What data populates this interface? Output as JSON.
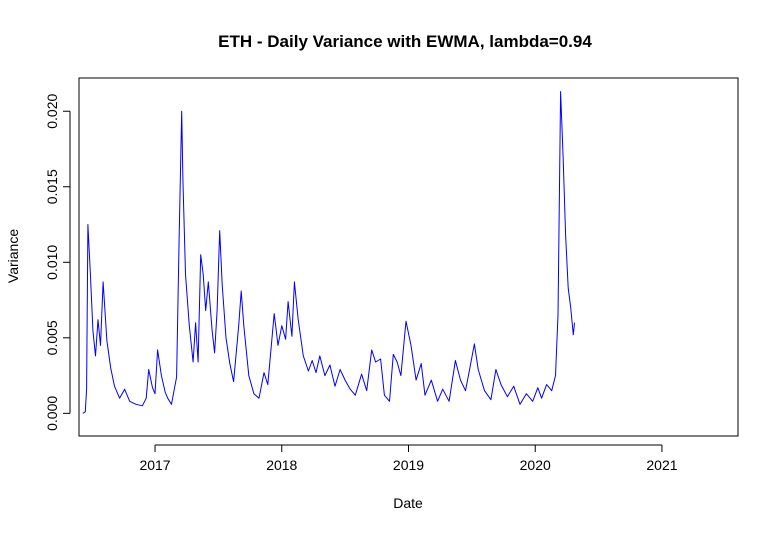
{
  "chart_data": {
    "type": "line",
    "title": "ETH - Daily Variance with EWMA, lambda=0.94",
    "xlabel": "Date",
    "ylabel": "Variance",
    "xlim": [
      2016.4,
      2021.6
    ],
    "ylim": [
      -0.0015,
      0.0222
    ],
    "x_ticks": [
      {
        "value": 2017,
        "label": "2017"
      },
      {
        "value": 2018,
        "label": "2018"
      },
      {
        "value": 2019,
        "label": "2019"
      },
      {
        "value": 2020,
        "label": "2020"
      },
      {
        "value": 2021,
        "label": "2021"
      }
    ],
    "y_ticks": [
      {
        "value": 0.0,
        "label": "0.000"
      },
      {
        "value": 0.005,
        "label": "0.005"
      },
      {
        "value": 0.01,
        "label": "0.010"
      },
      {
        "value": 0.015,
        "label": "0.015"
      },
      {
        "value": 0.02,
        "label": "0.020"
      }
    ],
    "grid": false,
    "series": [
      {
        "color": "#0000ff",
        "points": [
          [
            2016.43,
            0.0
          ],
          [
            2016.45,
            0.0001
          ],
          [
            2016.46,
            0.0016
          ],
          [
            2016.47,
            0.0125
          ],
          [
            2016.49,
            0.0092
          ],
          [
            2016.51,
            0.0055
          ],
          [
            2016.53,
            0.0038
          ],
          [
            2016.55,
            0.0062
          ],
          [
            2016.57,
            0.0045
          ],
          [
            2016.59,
            0.0087
          ],
          [
            2016.62,
            0.0048
          ],
          [
            2016.65,
            0.003
          ],
          [
            2016.68,
            0.0018
          ],
          [
            2016.72,
            0.001
          ],
          [
            2016.76,
            0.0016
          ],
          [
            2016.8,
            0.0008
          ],
          [
            2016.85,
            0.0006
          ],
          [
            2016.9,
            0.0005
          ],
          [
            2016.93,
            0.001
          ],
          [
            2016.95,
            0.0029
          ],
          [
            2016.98,
            0.0017
          ],
          [
            2017.0,
            0.0013
          ],
          [
            2017.02,
            0.0042
          ],
          [
            2017.05,
            0.0025
          ],
          [
            2017.08,
            0.0014
          ],
          [
            2017.1,
            0.001
          ],
          [
            2017.13,
            0.0006
          ],
          [
            2017.15,
            0.0015
          ],
          [
            2017.17,
            0.0024
          ],
          [
            2017.19,
            0.0115
          ],
          [
            2017.21,
            0.02
          ],
          [
            2017.22,
            0.0155
          ],
          [
            2017.24,
            0.0092
          ],
          [
            2017.27,
            0.0058
          ],
          [
            2017.3,
            0.0034
          ],
          [
            2017.32,
            0.006
          ],
          [
            2017.34,
            0.0034
          ],
          [
            2017.36,
            0.0105
          ],
          [
            2017.38,
            0.0092
          ],
          [
            2017.4,
            0.0068
          ],
          [
            2017.42,
            0.0087
          ],
          [
            2017.45,
            0.0055
          ],
          [
            2017.47,
            0.004
          ],
          [
            2017.49,
            0.0068
          ],
          [
            2017.51,
            0.0121
          ],
          [
            2017.53,
            0.0085
          ],
          [
            2017.56,
            0.005
          ],
          [
            2017.59,
            0.0033
          ],
          [
            2017.62,
            0.0021
          ],
          [
            2017.66,
            0.0058
          ],
          [
            2017.68,
            0.0081
          ],
          [
            2017.7,
            0.0058
          ],
          [
            2017.74,
            0.0025
          ],
          [
            2017.78,
            0.0013
          ],
          [
            2017.82,
            0.001
          ],
          [
            2017.86,
            0.0027
          ],
          [
            2017.89,
            0.0019
          ],
          [
            2017.94,
            0.0066
          ],
          [
            2017.97,
            0.0045
          ],
          [
            2018.0,
            0.0058
          ],
          [
            2018.03,
            0.0049
          ],
          [
            2018.05,
            0.0074
          ],
          [
            2018.08,
            0.0051
          ],
          [
            2018.1,
            0.0087
          ],
          [
            2018.13,
            0.0062
          ],
          [
            2018.17,
            0.0038
          ],
          [
            2018.21,
            0.0028
          ],
          [
            2018.24,
            0.0035
          ],
          [
            2018.27,
            0.0027
          ],
          [
            2018.3,
            0.0038
          ],
          [
            2018.34,
            0.0025
          ],
          [
            2018.38,
            0.0032
          ],
          [
            2018.42,
            0.0018
          ],
          [
            2018.46,
            0.0029
          ],
          [
            2018.5,
            0.0022
          ],
          [
            2018.54,
            0.0016
          ],
          [
            2018.58,
            0.0012
          ],
          [
            2018.63,
            0.0026
          ],
          [
            2018.67,
            0.0015
          ],
          [
            2018.71,
            0.0042
          ],
          [
            2018.74,
            0.0034
          ],
          [
            2018.78,
            0.0036
          ],
          [
            2018.81,
            0.0012
          ],
          [
            2018.85,
            0.0008
          ],
          [
            2018.88,
            0.0039
          ],
          [
            2018.91,
            0.0034
          ],
          [
            2018.94,
            0.0025
          ],
          [
            2018.98,
            0.0061
          ],
          [
            2019.02,
            0.0045
          ],
          [
            2019.06,
            0.0022
          ],
          [
            2019.1,
            0.0033
          ],
          [
            2019.13,
            0.0012
          ],
          [
            2019.18,
            0.0022
          ],
          [
            2019.23,
            0.0008
          ],
          [
            2019.27,
            0.0016
          ],
          [
            2019.32,
            0.0008
          ],
          [
            2019.37,
            0.0035
          ],
          [
            2019.41,
            0.0022
          ],
          [
            2019.45,
            0.0015
          ],
          [
            2019.48,
            0.0028
          ],
          [
            2019.52,
            0.0046
          ],
          [
            2019.55,
            0.0029
          ],
          [
            2019.6,
            0.0015
          ],
          [
            2019.65,
            0.0009
          ],
          [
            2019.69,
            0.0029
          ],
          [
            2019.73,
            0.0019
          ],
          [
            2019.78,
            0.0011
          ],
          [
            2019.83,
            0.0018
          ],
          [
            2019.88,
            0.0006
          ],
          [
            2019.93,
            0.0013
          ],
          [
            2019.98,
            0.0008
          ],
          [
            2020.02,
            0.0017
          ],
          [
            2020.05,
            0.001
          ],
          [
            2020.09,
            0.0019
          ],
          [
            2020.13,
            0.0015
          ],
          [
            2020.16,
            0.0025
          ],
          [
            2020.18,
            0.0065
          ],
          [
            2020.2,
            0.0213
          ],
          [
            2020.22,
            0.017
          ],
          [
            2020.24,
            0.0118
          ],
          [
            2020.26,
            0.0083
          ],
          [
            2020.28,
            0.007
          ],
          [
            2020.3,
            0.0052
          ],
          [
            2020.31,
            0.006
          ]
        ]
      }
    ]
  }
}
